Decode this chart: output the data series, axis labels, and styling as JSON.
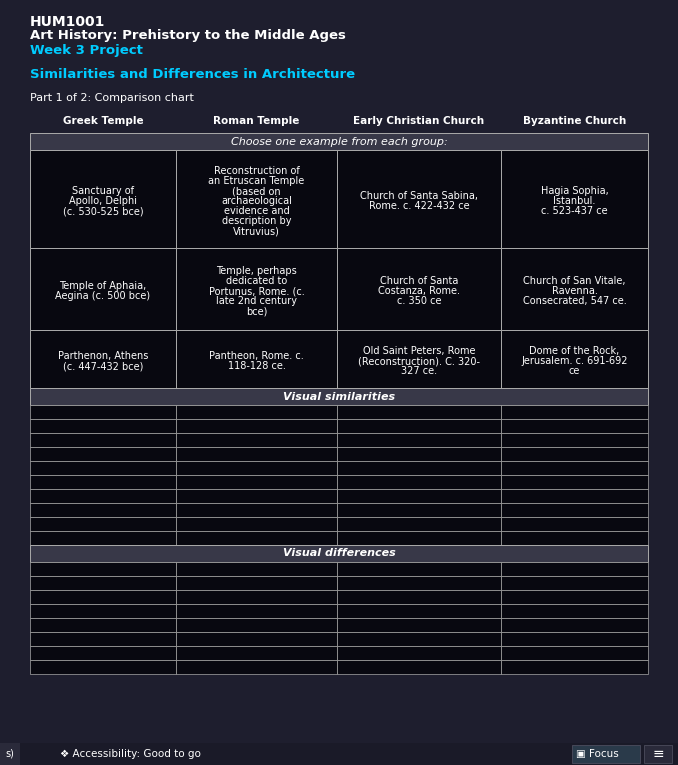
{
  "bg_color": "#1e1e2e",
  "bg_outer": "#141420",
  "title1": "HUM1001",
  "title2": "Art History: Prehistory to the Middle Ages",
  "title3": "Week 3 Project",
  "subtitle": "Similarities and Differences in Architecture",
  "part_label": "Part 1 of 2: Comparison chart",
  "col_headers": [
    "Greek Temple",
    "Roman Temple",
    "Early Christian Church",
    "Byzantine Church"
  ],
  "choose_text": "Choose one example from each group:",
  "row1": [
    "Sanctuary of\nApollo, Delphi\n(c. 530-525 bce)",
    "Reconstruction of\nan Etruscan Temple\n(based on\narchaeological\nevidence and\ndescription by\nVitruvius)",
    "Church of Santa Sabina,\nRome. c. 422-432 ce",
    "Hagia Sophia,\nIstanbul.\nc. 523-437 ce"
  ],
  "row2": [
    "Temple of Aphaia,\nAegina (c. 500 bce)",
    "Temple, perhaps\ndedicated to\nPortunus, Rome. (c.\nlate 2nd century\nbce)",
    "Church of Santa\nCostanza, Rome.\nc. 350 ce",
    "Church of San Vitale,\nRavenna.\nConsecrated, 547 ce."
  ],
  "row3": [
    "Parthenon, Athens\n(c. 447-432 bce)",
    "Pantheon, Rome. c.\n118-128 ce.",
    "Old Saint Peters, Rome\n(Reconstruction). C. 320-\n327 ce.",
    "Dome of the Rock,\nJerusalem. c. 691-692\nce"
  ],
  "sim_label": "Visual similarities",
  "diff_label": "Visual differences",
  "sim_rows": 10,
  "diff_rows": 8,
  "cell_color": "#080810",
  "border_color": "#aaaaaa",
  "text_color_white": "#ffffff",
  "text_color_cyan": "#00ccff",
  "section_header_color": "#383848",
  "bottom_bar_color": "#1a1a28"
}
